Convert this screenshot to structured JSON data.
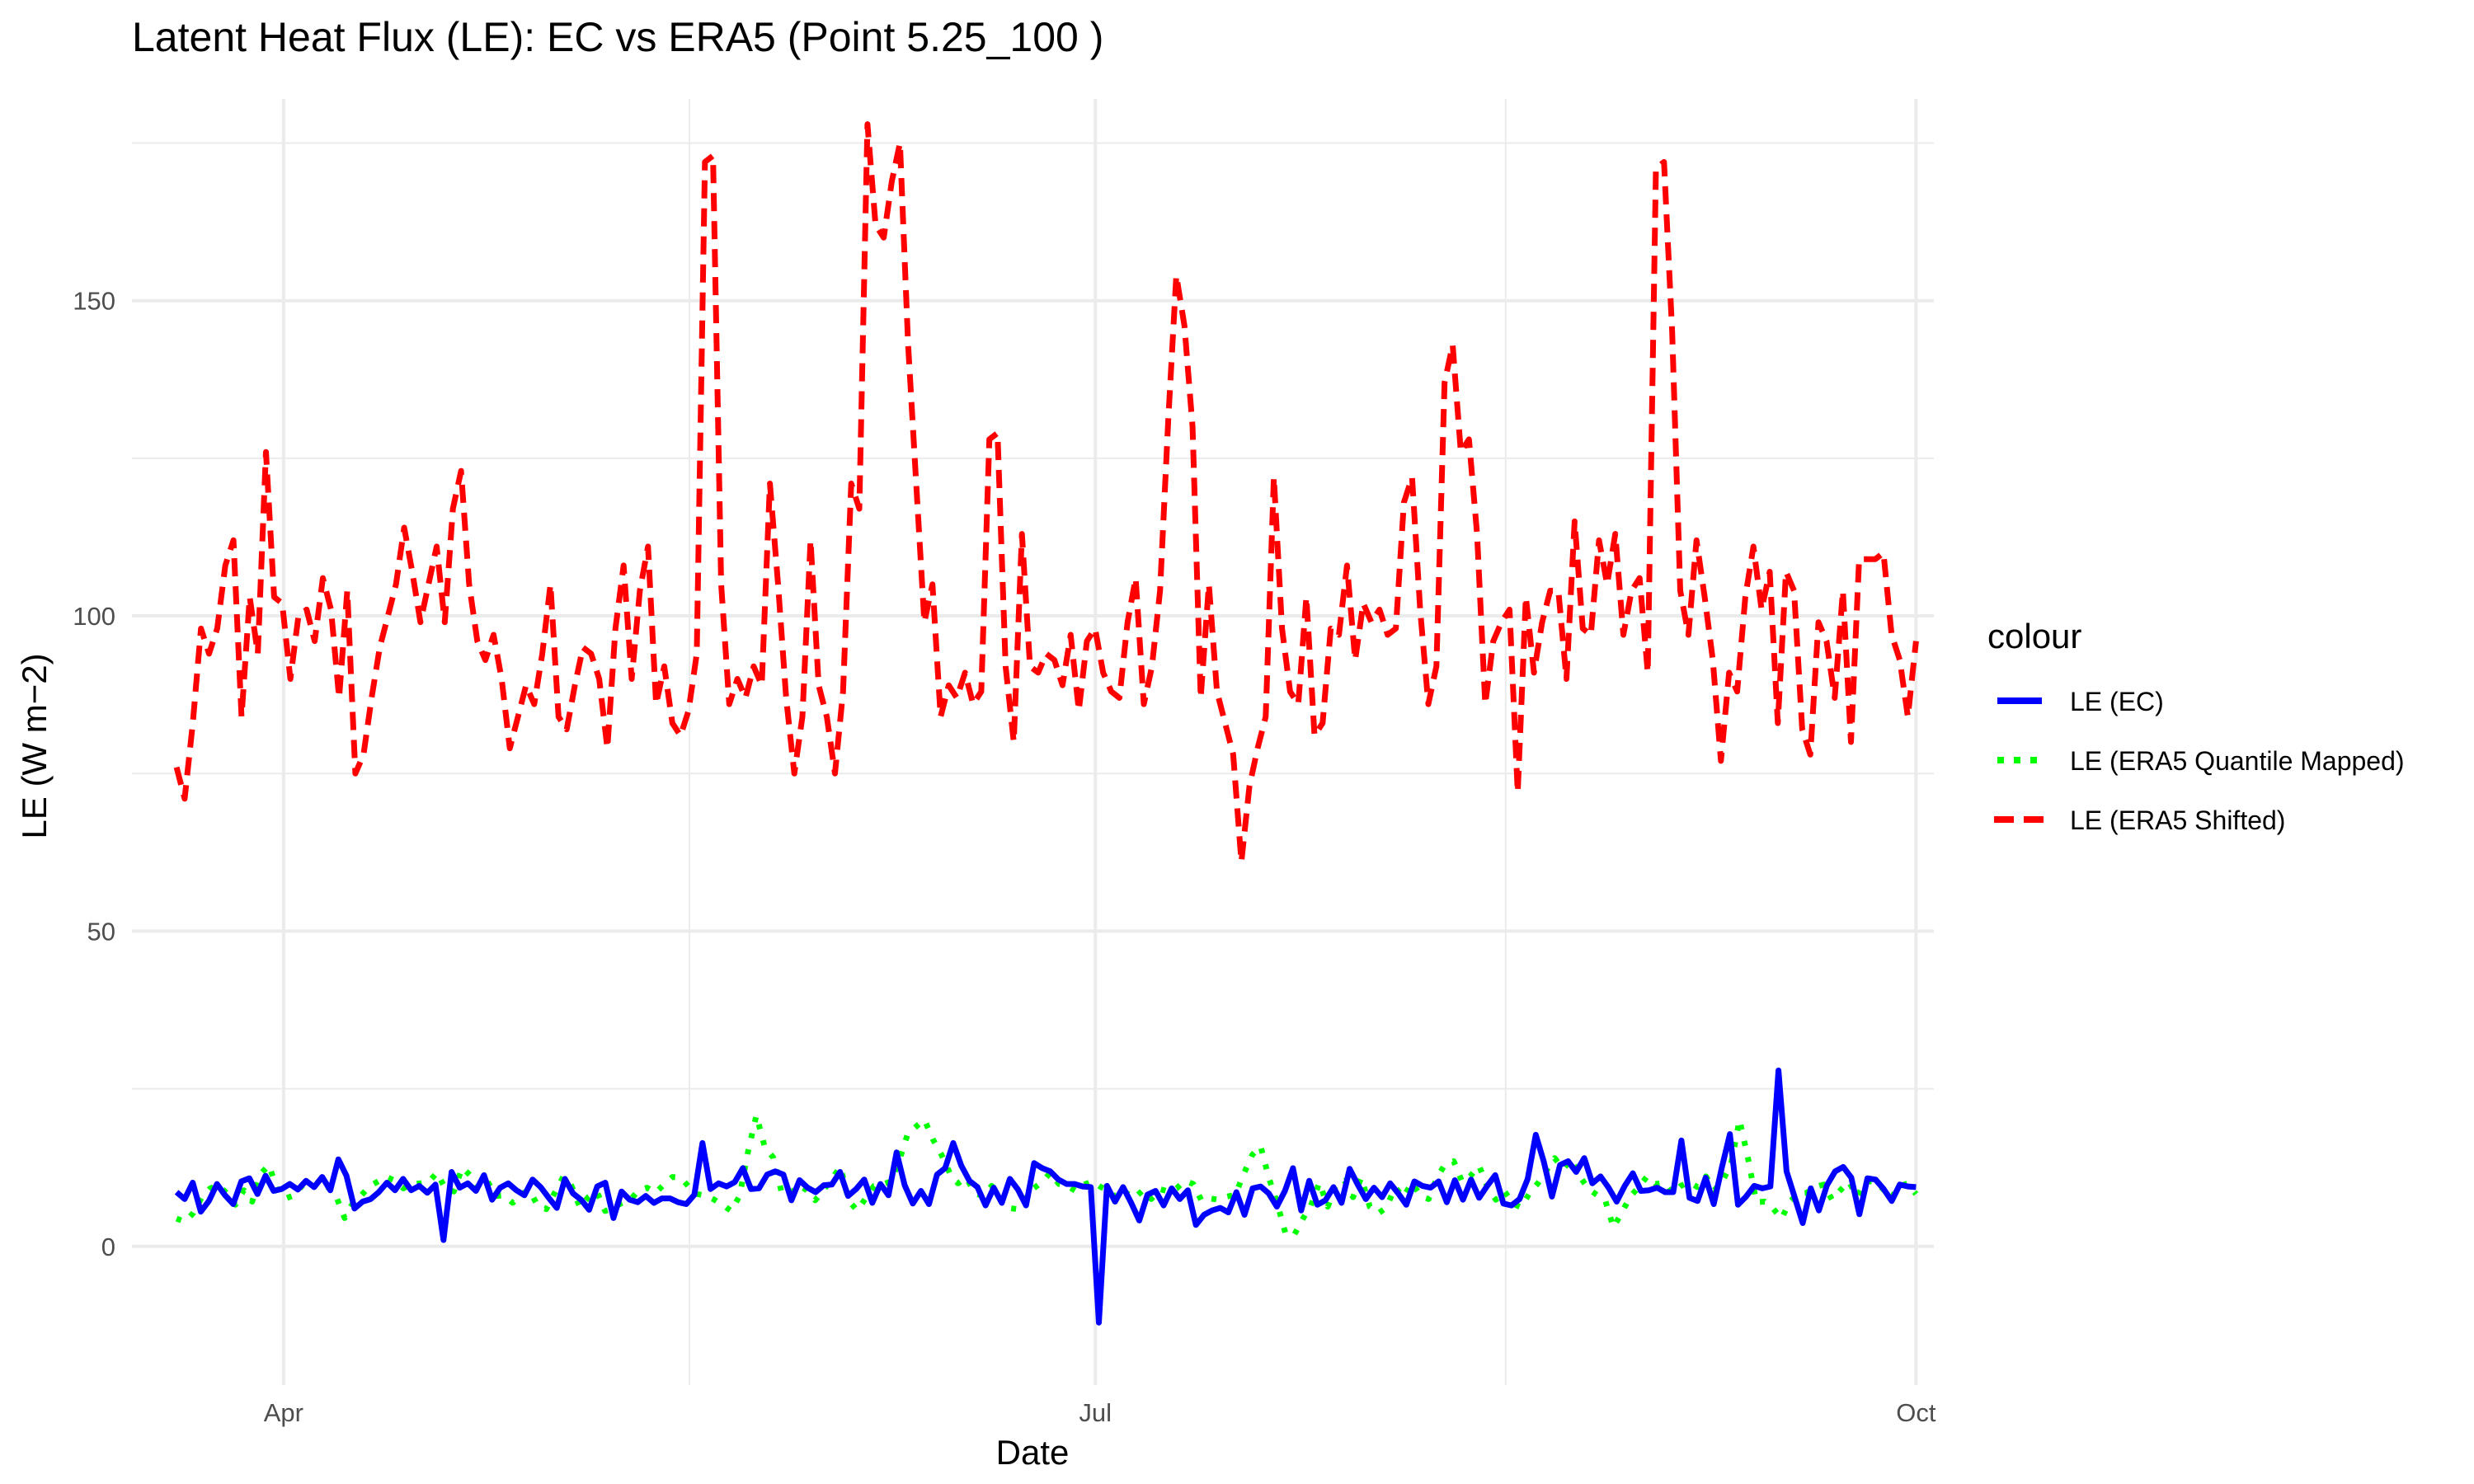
{
  "chart_data": {
    "type": "line",
    "title": "Latent Heat Flux (LE): EC vs ERA5 (Point 5.25_100 )",
    "xlabel": "Date",
    "ylabel": "LE (W m−2)",
    "x_type": "date",
    "x_start": "2024-03-20",
    "x_end": "2024-10-01",
    "xlim": [
      "2024-03-15",
      "2024-10-03"
    ],
    "ylim": [
      -22,
      182
    ],
    "x_ticks": [
      {
        "label": "Apr",
        "date": "2024-04-01"
      },
      {
        "label": "Jul",
        "date": "2024-07-01"
      },
      {
        "label": "Oct",
        "date": "2024-10-01"
      }
    ],
    "y_ticks": [
      0,
      50,
      100,
      150
    ],
    "grid": true,
    "legend": {
      "title": "colour",
      "position": "right"
    },
    "series": [
      {
        "name": "LE (EC)",
        "color": "#0000ff",
        "dash": "solid",
        "values": [
          8.6,
          7.5,
          10.1,
          5.5,
          7.2,
          9.9,
          8.1,
          6.7,
          10.3,
          10.8,
          8.3,
          11.2,
          8.8,
          9.1,
          9.9,
          9.0,
          10.4,
          9.4,
          11.0,
          8.9,
          13.8,
          11.2,
          6.0,
          7.1,
          7.5,
          8.6,
          10.1,
          8.9,
          10.7,
          8.9,
          9.6,
          8.5,
          9.8,
          1.0,
          11.8,
          9.3,
          10.0,
          8.8,
          11.3,
          7.4,
          9.3,
          10.0,
          8.9,
          8.1,
          10.6,
          9.4,
          7.7,
          6.1,
          10.7,
          8.4,
          7.4,
          5.8,
          9.5,
          10.1,
          4.5,
          8.7,
          7.4,
          7.0,
          8.0,
          6.9,
          7.6,
          7.6,
          7.0,
          6.7,
          8.2,
          16.4,
          9.1,
          10.0,
          9.5,
          10.2,
          12.4,
          9.1,
          9.2,
          11.4,
          11.9,
          11.4,
          7.3,
          10.5,
          9.3,
          8.6,
          9.7,
          9.8,
          11.8,
          8.0,
          9.1,
          10.6,
          6.9,
          9.9,
          8.1,
          14.9,
          9.7,
          6.8,
          8.8,
          6.7,
          11.4,
          12.4,
          16.4,
          12.8,
          10.4,
          9.4,
          6.5,
          9.3,
          6.9,
          10.7,
          9.0,
          6.5,
          13.2,
          12.4,
          11.9,
          10.6,
          9.9,
          9.9,
          9.5,
          9.4,
          -12.1,
          9.6,
          7.1,
          9.4,
          6.9,
          4.1,
          8.2,
          8.8,
          6.5,
          9.2,
          7.5,
          8.9,
          3.4,
          5.0,
          5.7,
          6.1,
          5.4,
          8.6,
          5.0,
          9.2,
          9.5,
          8.4,
          6.3,
          8.8,
          12.4,
          5.7,
          10.4,
          6.6,
          7.3,
          9.4,
          6.9,
          12.3,
          9.8,
          7.5,
          9.3,
          7.8,
          10.0,
          8.4,
          6.6,
          10.3,
          9.6,
          9.3,
          10.3,
          7.0,
          10.5,
          7.4,
          10.6,
          7.7,
          9.6,
          11.3,
          6.8,
          6.5,
          7.5,
          10.7,
          17.7,
          13.4,
          7.9,
          12.9,
          13.5,
          11.8,
          14.0,
          10.0,
          11.1,
          9.3,
          7.1,
          9.6,
          11.6,
          8.8,
          8.9,
          9.3,
          8.6,
          8.6,
          16.8,
          7.7,
          7.2,
          10.9,
          6.7,
          12.5,
          17.8,
          6.6,
          7.9,
          9.6,
          9.2,
          9.5,
          27.9,
          11.9,
          7.8,
          3.7,
          9.2,
          5.7,
          9.7,
          11.9,
          12.6,
          10.9,
          5.1,
          10.8,
          10.6,
          9.1,
          7.2,
          9.8,
          9.5,
          9.4
        ]
      },
      {
        "name": "LE (ERA5 Quantile Mapped)",
        "color": "#00ff00",
        "dash": "dotted",
        "values": [
          4.4,
          3.9,
          5.3,
          7.8,
          9.2,
          9.7,
          8.4,
          6.6,
          8.9,
          7.1,
          11.5,
          12.9,
          8.8,
          7.6,
          8.1,
          9.7,
          10.2,
          8.9,
          9.4,
          7.9,
          4.5,
          6.9,
          8.1,
          9.6,
          10.3,
          11.0,
          10.4,
          9.2,
          9.9,
          10.0,
          10.2,
          11.7,
          9.1,
          8.7,
          12.5,
          11.2,
          9.2,
          10.3,
          8.0,
          8.1,
          6.9,
          8.3,
          8.9,
          6.4,
          5.9,
          8.5,
          11.0,
          9.6,
          6.2,
          7.8,
          8.7,
          5.6,
          6.1,
          6.9,
          7.4,
          8.9,
          9.3,
          8.5,
          9.8,
          11.0,
          10.9,
          9.4,
          8.3,
          8.0,
          7.4,
          6.6,
          5.6,
          8.0,
          15.0,
          20.8,
          15.7,
          14.1,
          8.6,
          8.3,
          9.7,
          8.9,
          7.3,
          8.9,
          10.8,
          12.6,
          7.2,
          5.7,
          7.6,
          9.6,
          9.8,
          10.3,
          13.6,
          17.8,
          19.0,
          20.1,
          17.0,
          14.6,
          11.7,
          10.0,
          10.9,
          8.4,
          8.0,
          9.6,
          7.8,
          6.1,
          5.9,
          7.6,
          9.2,
          10.2,
          11.7,
          9.9,
          9.6,
          8.8,
          9.8,
          10.3,
          9.4,
          8.9,
          7.4,
          8.5,
          7.7,
          8.9,
          7.5,
          9.1,
          8.7,
          9.2,
          10.4,
          9.9,
          7.2,
          7.6,
          7.4,
          7.9,
          8.2,
          11.5,
          14.5,
          15.9,
          10.8,
          6.8,
          1.9,
          1.8,
          4.3,
          6.5,
          10.1,
          6.3,
          9.8,
          10.4,
          7.8,
          10.9,
          6.3,
          5.2,
          6.2,
          9.4,
          7.8,
          10.1,
          8.1,
          7.5,
          10.9,
          13.1,
          13.5,
          10.2,
          11.2,
          12.8,
          9.5,
          7.4,
          8.8,
          6.8,
          6.2,
          8.4,
          10.0,
          12.0,
          14.0,
          12.3,
          13.8,
          11.1,
          9.1,
          8.2,
          7.4,
          3.0,
          5.4,
          7.9,
          9.4,
          11.1,
          9.9,
          10.1,
          8.4,
          9.6,
          10.2,
          9.4,
          11.1,
          8.9,
          10.4,
          13.1,
          20.1,
          14.0,
          7.0,
          7.1,
          6.0,
          4.4,
          7.1,
          8.4,
          8.5,
          9.4,
          9.8,
          7.4,
          8.9,
          10.3,
          7.9,
          10.3,
          10.3,
          9.2,
          7.6,
          9.5,
          10.0,
          8.3
        ]
      },
      {
        "name": "LE (ERA5 Shifted)",
        "color": "#ff0000",
        "dash": "dashed",
        "values": [
          76,
          71,
          83,
          98,
          94,
          98,
          108,
          112,
          84,
          103,
          94,
          126,
          103,
          102,
          90,
          100,
          101,
          96,
          106,
          101,
          87,
          104,
          75,
          78,
          87,
          95,
          100,
          105,
          114,
          107,
          99,
          105,
          111,
          99,
          117,
          123,
          105,
          96,
          93,
          97,
          90,
          79,
          84,
          89,
          86,
          94,
          105,
          84,
          82,
          89,
          95,
          94,
          90,
          79,
          98,
          108,
          90,
          104,
          111,
          86,
          92,
          83,
          81,
          85,
          94,
          172,
          173,
          105,
          86,
          90,
          87,
          92,
          89,
          121,
          105,
          87,
          75,
          84,
          112,
          89,
          84,
          75,
          88,
          121,
          117,
          178,
          162,
          160,
          169,
          175,
          143,
          121,
          99,
          105,
          84,
          89,
          87,
          91,
          86,
          88,
          128,
          129,
          92,
          80,
          113,
          92,
          91,
          94,
          93,
          89,
          97,
          85,
          96,
          98,
          91,
          88,
          87,
          99,
          106,
          86,
          92,
          104,
          131,
          154,
          146,
          130,
          87,
          105,
          88,
          83,
          78,
          61,
          73,
          79,
          84,
          122,
          98,
          88,
          86,
          103,
          81,
          83,
          98,
          97,
          108,
          93,
          102,
          99,
          101,
          97,
          98,
          118,
          122,
          101,
          86,
          92,
          137,
          143,
          126,
          128,
          113,
          86,
          96,
          99,
          101,
          72,
          103,
          91,
          99,
          104,
          104,
          90,
          115,
          98,
          97,
          112,
          105,
          113,
          97,
          104,
          106,
          91,
          171,
          172,
          145,
          104,
          97,
          112,
          103,
          93,
          77,
          91,
          88,
          103,
          111,
          101,
          107,
          83,
          107,
          104,
          82,
          78,
          99,
          96,
          87,
          104,
          80,
          109,
          109,
          109,
          110,
          97,
          93,
          84,
          96
        ]
      }
    ]
  }
}
